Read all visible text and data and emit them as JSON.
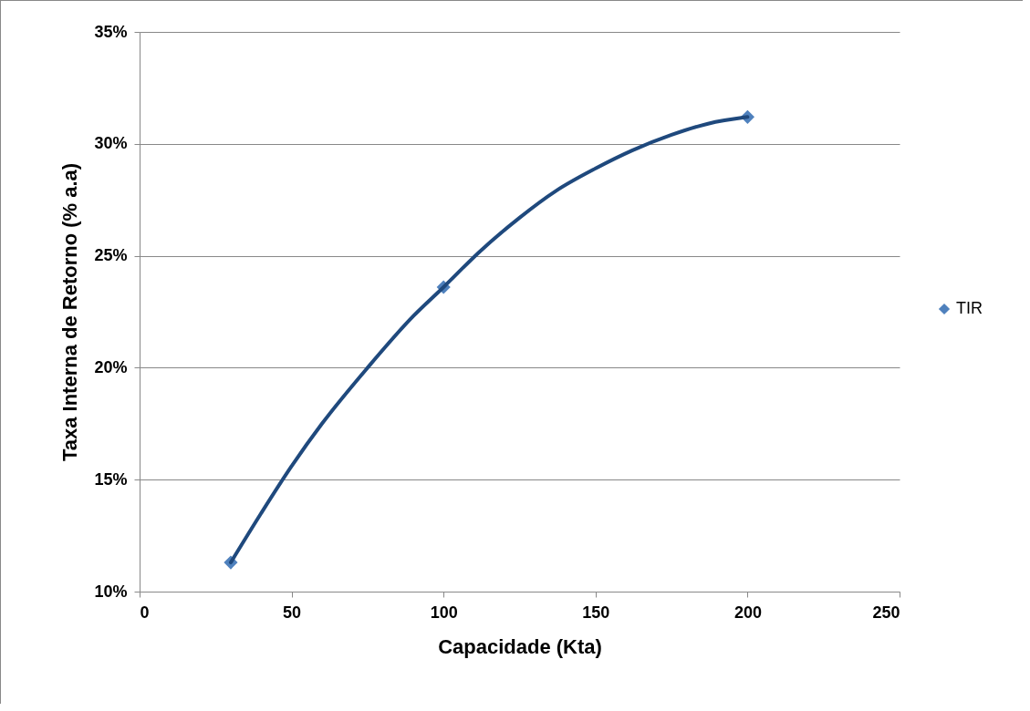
{
  "chart_data": {
    "type": "scatter",
    "xlabel": "Capacidade (Kta)",
    "ylabel": "Taxa Interna de Retorno (% a.a)",
    "xlim": [
      0,
      250
    ],
    "xticks": [
      0,
      50,
      100,
      150,
      200,
      250
    ],
    "ylim": [
      10,
      35
    ],
    "yticks": [
      {
        "value": 10,
        "label": "10%"
      },
      {
        "value": 15,
        "label": "15%"
      },
      {
        "value": 20,
        "label": "20%"
      },
      {
        "value": 25,
        "label": "25%"
      },
      {
        "value": 30,
        "label": "30%"
      },
      {
        "value": 35,
        "label": "35%"
      }
    ],
    "grid": "y",
    "legend": "right",
    "series": [
      {
        "name": "TIR",
        "color": "#4f81bd",
        "marker": "diamond",
        "x": [
          30,
          100,
          200
        ],
        "values": [
          11.3,
          23.6,
          31.2
        ]
      },
      {
        "type": "line",
        "color": "#1f497d",
        "x": [
          30,
          40,
          50,
          60,
          75,
          90,
          100,
          112,
          125,
          137,
          150,
          162,
          175,
          187,
          200
        ],
        "values": [
          11.3,
          13.5,
          15.6,
          17.5,
          20,
          22.3,
          23.6,
          25.2,
          26.7,
          27.9,
          28.9,
          29.7,
          30.4,
          30.9,
          31.2
        ]
      }
    ]
  }
}
